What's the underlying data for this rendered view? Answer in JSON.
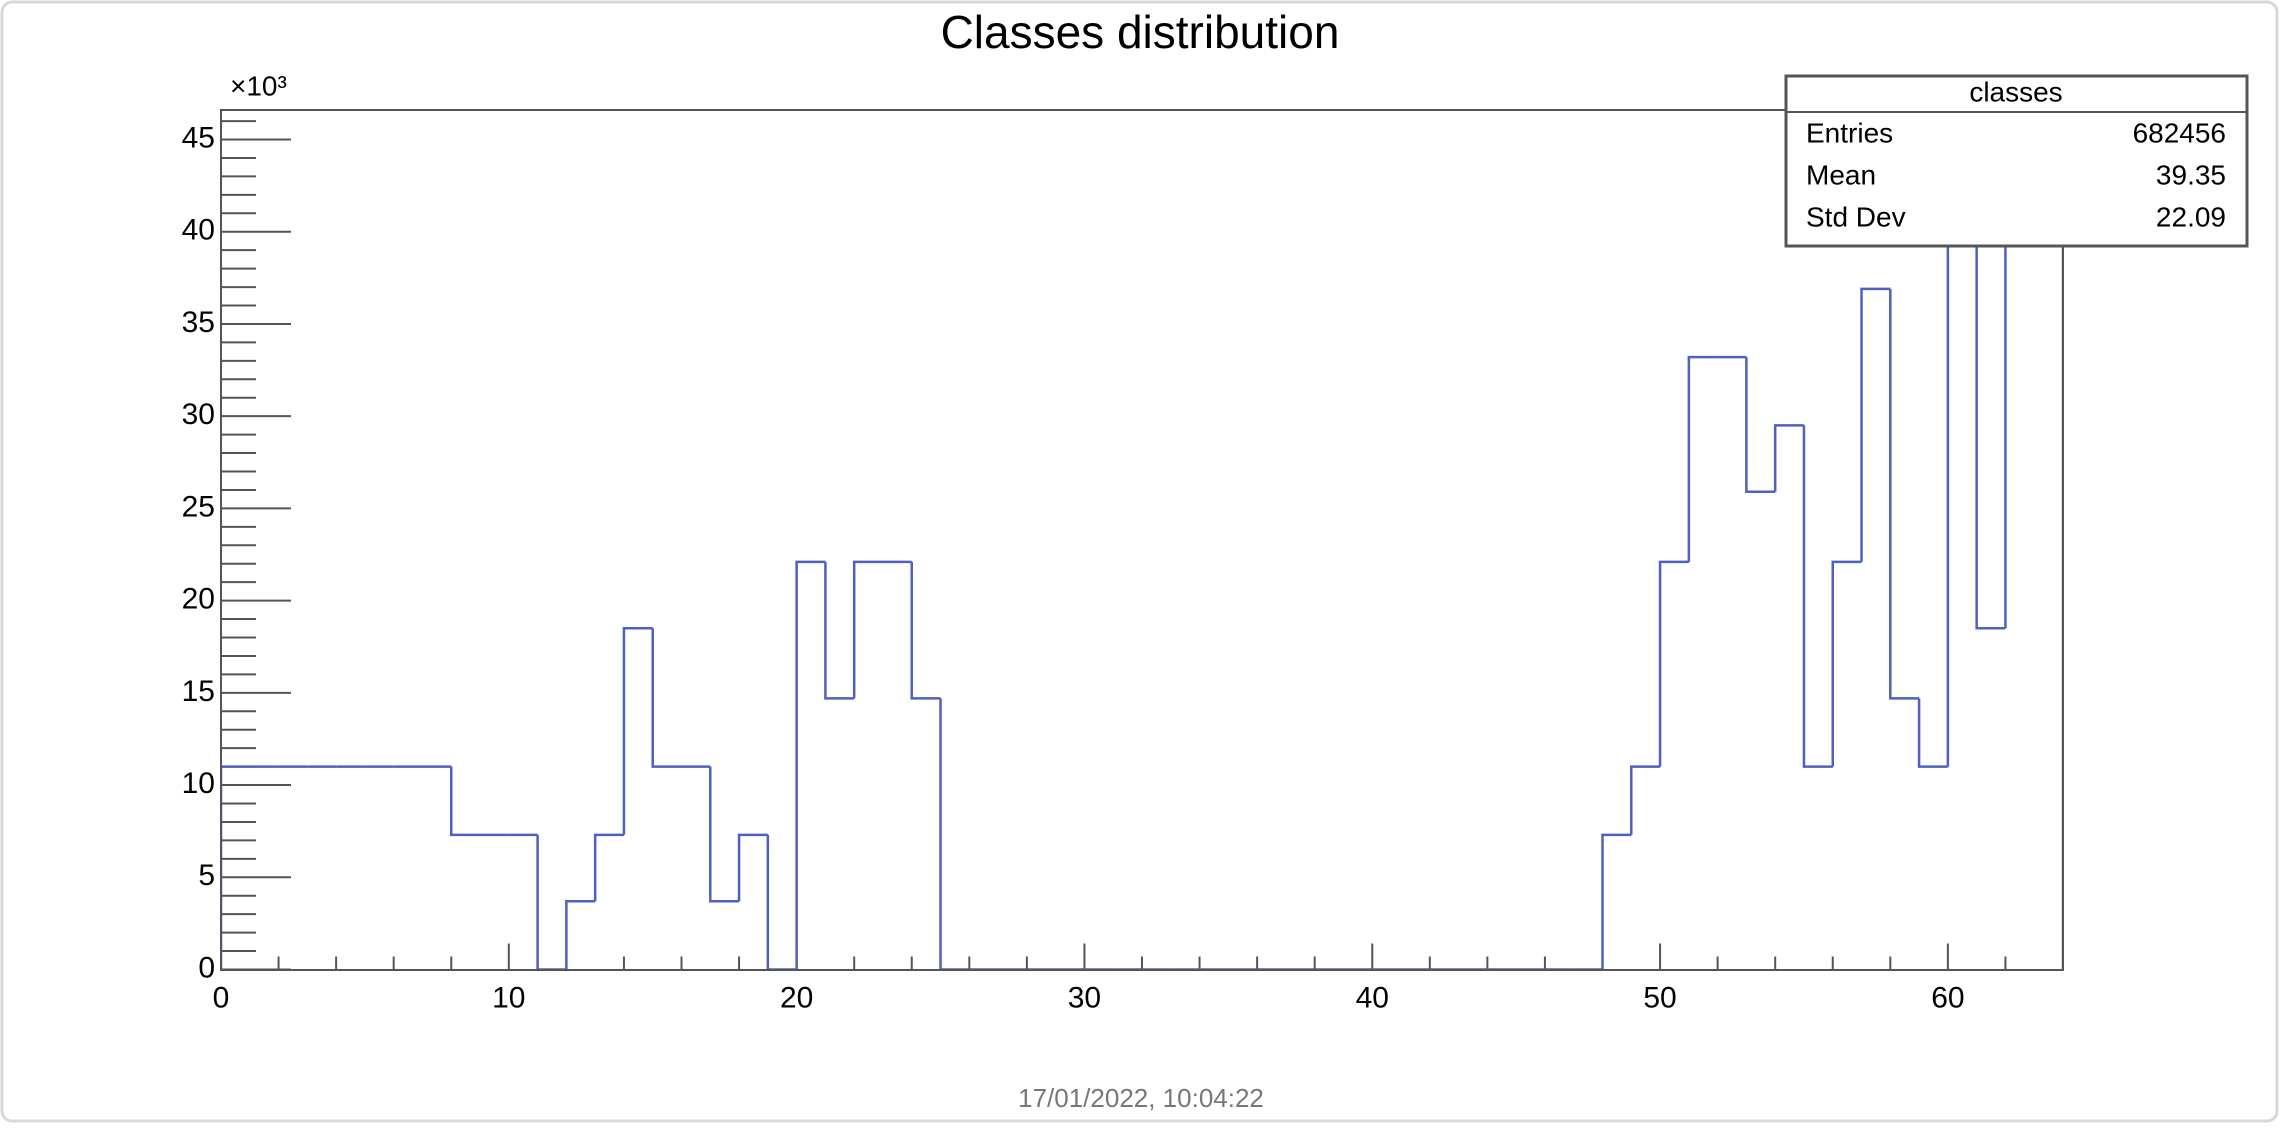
{
  "chart_data": {
    "type": "histogram",
    "title": "Classes distribution",
    "y_multiplier": "×10³",
    "bins": [
      0,
      1,
      2,
      3,
      4,
      5,
      6,
      7,
      8,
      9,
      10,
      11,
      12,
      13,
      14,
      15,
      16,
      17,
      18,
      19,
      20,
      21,
      22,
      23,
      24,
      25,
      26,
      27,
      28,
      29,
      30,
      31,
      32,
      33,
      34,
      35,
      36,
      37,
      38,
      39,
      40,
      41,
      42,
      43,
      44,
      45,
      46,
      47,
      48,
      49,
      50,
      51,
      52,
      53,
      54,
      55,
      56,
      57,
      58,
      59,
      60,
      61,
      62,
      63,
      64
    ],
    "counts": [
      11.0,
      11.0,
      11.0,
      11.0,
      11.0,
      11.0,
      11.0,
      11.0,
      7.3,
      7.3,
      7.3,
      0,
      3.7,
      7.3,
      18.5,
      11.0,
      11.0,
      3.7,
      7.3,
      0,
      22.1,
      14.7,
      22.1,
      22.1,
      14.7,
      0,
      0,
      0,
      0,
      0,
      0,
      0,
      0,
      0,
      0,
      0,
      0,
      0,
      0,
      0,
      0,
      0,
      0,
      0,
      0,
      0,
      0,
      0,
      7.3,
      11.0,
      22.1,
      33.2,
      33.2,
      25.9,
      29.5,
      11.0,
      22.1,
      36.9,
      14.7,
      11.0,
      47,
      18.5,
      46.9,
      46.9
    ],
    "color": "#5060c0",
    "xlim": [
      0,
      64
    ],
    "xticks": [
      0,
      10,
      20,
      30,
      40,
      50,
      60
    ],
    "ylim": [
      0,
      46.6
    ],
    "yticks": [
      0,
      5,
      10,
      15,
      20,
      25,
      30,
      35,
      40,
      45
    ],
    "stats": {
      "title": "classes",
      "rows": [
        [
          "Entries",
          "682456"
        ],
        [
          "Mean",
          "39.35"
        ],
        [
          "Std Dev",
          "22.09"
        ]
      ]
    },
    "timestamp": "17/01/2022, 10:04:22"
  }
}
